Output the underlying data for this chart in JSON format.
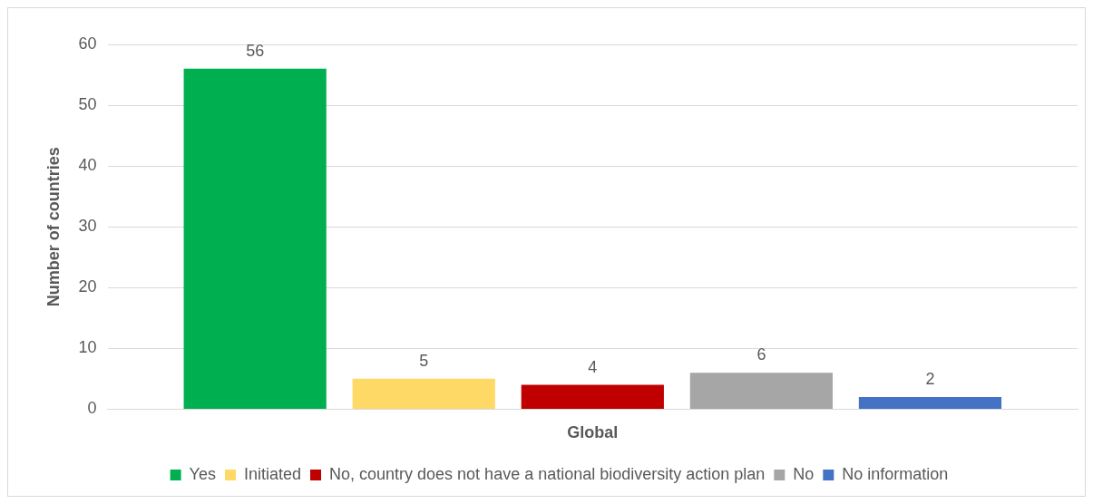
{
  "chart_data": {
    "type": "bar",
    "categories": [
      "Global"
    ],
    "ylabel": "Number of countries",
    "series": [
      {
        "name": "Yes",
        "color": "#00b050",
        "values": [
          56
        ]
      },
      {
        "name": "Initiated",
        "color": "#ffd966",
        "values": [
          5
        ]
      },
      {
        "name": "No, country does not have a national biodiversity action plan",
        "color": "#c00000",
        "values": [
          4
        ]
      },
      {
        "name": "No",
        "color": "#a6a6a6",
        "values": [
          6
        ]
      },
      {
        "name": "No information",
        "color": "#4472c4",
        "values": [
          2
        ]
      }
    ],
    "ylim": [
      0,
      60
    ],
    "yticks": [
      0,
      10,
      20,
      30,
      40,
      50,
      60
    ],
    "grid": "y",
    "legend": "bottom",
    "data_labels": true
  }
}
